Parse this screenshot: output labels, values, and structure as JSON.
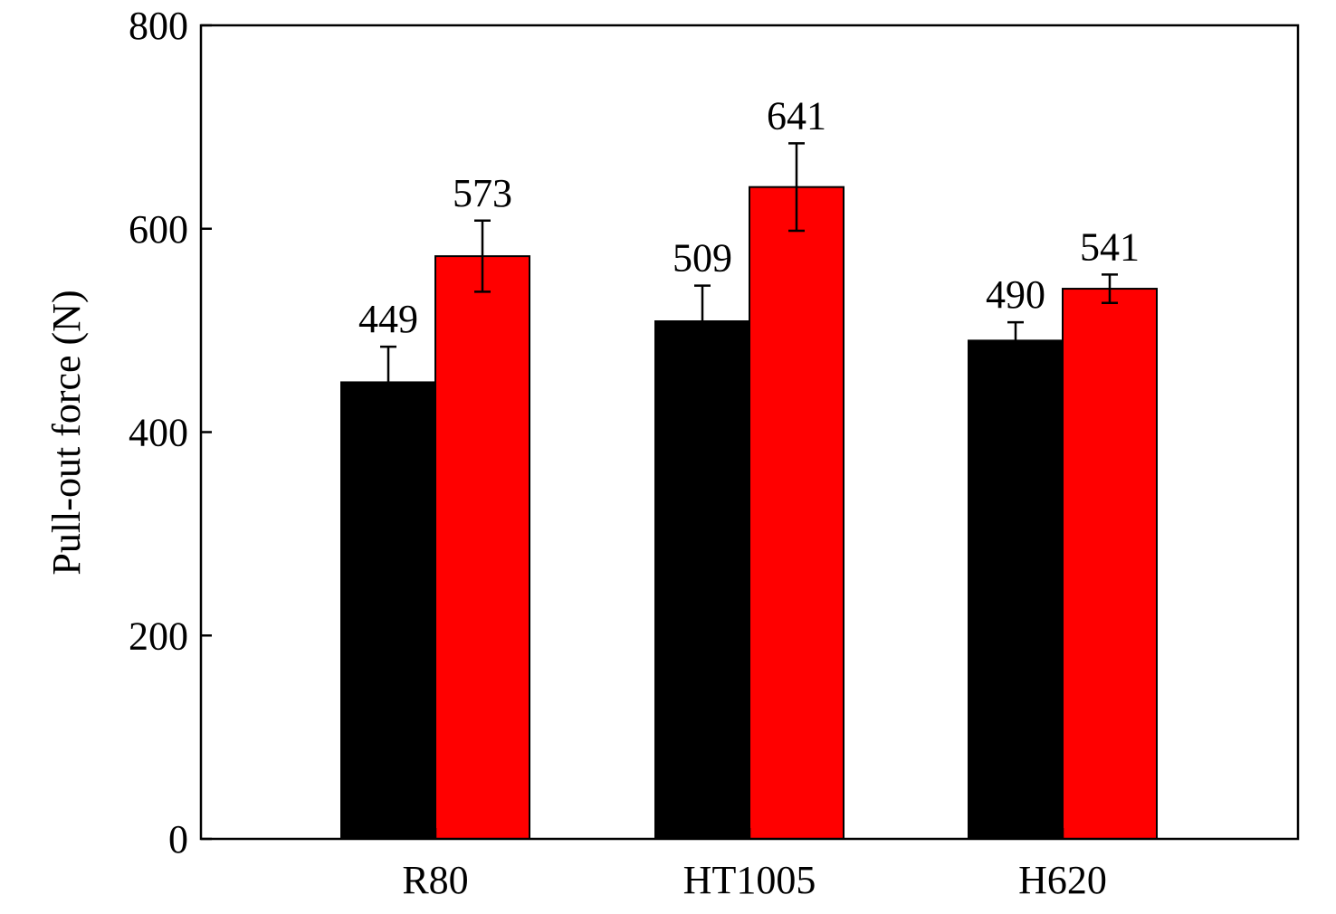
{
  "chart_data": {
    "type": "bar",
    "title": "",
    "xlabel": "",
    "ylabel": "Pull-out force (N)",
    "ylim": [
      0,
      800
    ],
    "yticks": [
      0,
      200,
      400,
      600,
      800
    ],
    "grid": false,
    "legend": "none",
    "categories": [
      "R80",
      "HT1005",
      "H620"
    ],
    "series": [
      {
        "color": "#000000",
        "values": [
          449,
          509,
          490
        ],
        "errors": [
          35,
          35,
          18
        ],
        "labels": [
          "449",
          "509",
          "490"
        ]
      },
      {
        "color": "#ff0000",
        "values": [
          573,
          641,
          541
        ],
        "errors": [
          35,
          43,
          14
        ],
        "labels": [
          "573",
          "641",
          "541"
        ]
      }
    ]
  }
}
